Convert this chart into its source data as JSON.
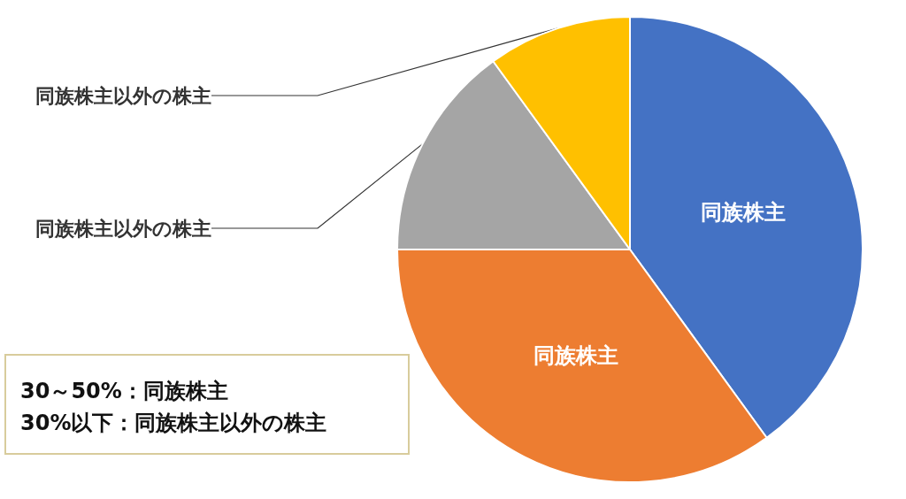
{
  "chart_data": {
    "type": "pie",
    "categories": [
      "同族株主",
      "同族株主",
      "同族株主以外の株主",
      "同族株主以外の株主"
    ],
    "values": [
      40,
      35,
      15,
      10
    ],
    "colors": [
      "#4472c4",
      "#ed7d31",
      "#a5a5a5",
      "#ffc000"
    ],
    "annotations": [
      "30～50%：同族株主",
      "30%以下：同族株主以外の株主"
    ],
    "legend": false
  }
}
